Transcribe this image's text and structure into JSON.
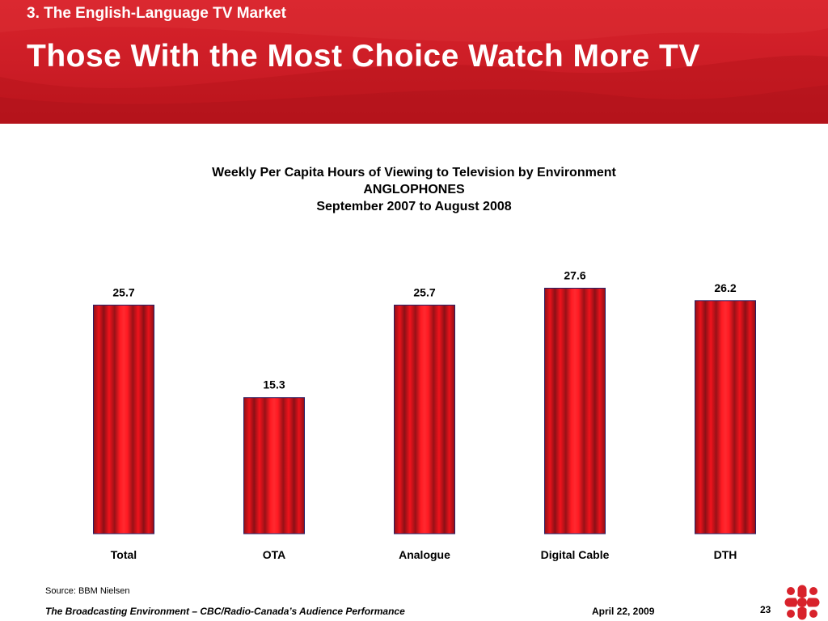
{
  "header": {
    "section_label": "3. The English-Language TV Market",
    "title": "Those With the Most Choice Watch More TV"
  },
  "chart_data": {
    "type": "bar",
    "title": "Weekly Per Capita Hours of Viewing to Television by Environment",
    "subtitle_lines": [
      "ANGLOPHONES",
      "September 2007 to August 2008"
    ],
    "categories": [
      "Total",
      "OTA",
      "Analogue",
      "Digital Cable",
      "DTH"
    ],
    "values": [
      25.7,
      15.3,
      25.7,
      27.6,
      26.2
    ],
    "value_labels": [
      "25.7",
      "15.3",
      "25.7",
      "27.6",
      "26.2"
    ],
    "xlabel": "",
    "ylabel": "",
    "ylim": [
      0,
      30
    ],
    "grid": false,
    "legend": "none",
    "bar_color": "#e8121b"
  },
  "footer": {
    "source": "Source: BBM Nielsen",
    "presentation": "The Broadcasting Environment – CBC/Radio-Canada’s Audience Performance",
    "date": "April 22, 2009",
    "page": "23"
  },
  "colors": {
    "header_red": "#cc1d26",
    "bar_red": "#e8121b",
    "bar_dark": "#8c1016",
    "bar_outline": "#2a1f66",
    "logo_red": "#d8222b"
  },
  "icons": {
    "logo": "cbc-radio-canada-gem-icon"
  }
}
